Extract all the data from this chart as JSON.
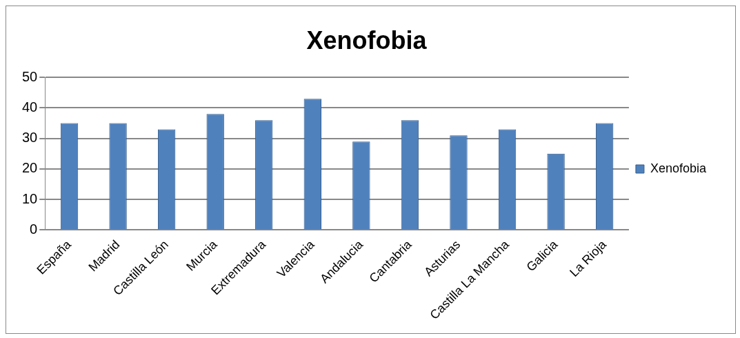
{
  "chart_data": {
    "type": "bar",
    "title": "Xenofobia",
    "categories": [
      "España",
      "Madrid",
      "Castilla León",
      "Murcia",
      "Extremadura",
      "Valencia",
      "Andalucia",
      "Cantabria",
      "Asturias",
      "Castilla La Mancha",
      "Galicia",
      "La Rioja"
    ],
    "series": [
      {
        "name": "Xenofobia",
        "color": "#4f81bd",
        "values": [
          35,
          35,
          33,
          38,
          36,
          43,
          29,
          36,
          31,
          33,
          25,
          35
        ]
      }
    ],
    "ylim": [
      0,
      50
    ],
    "yticks": [
      0,
      10,
      20,
      30,
      40,
      50
    ],
    "grid": "y",
    "legend": "right"
  }
}
